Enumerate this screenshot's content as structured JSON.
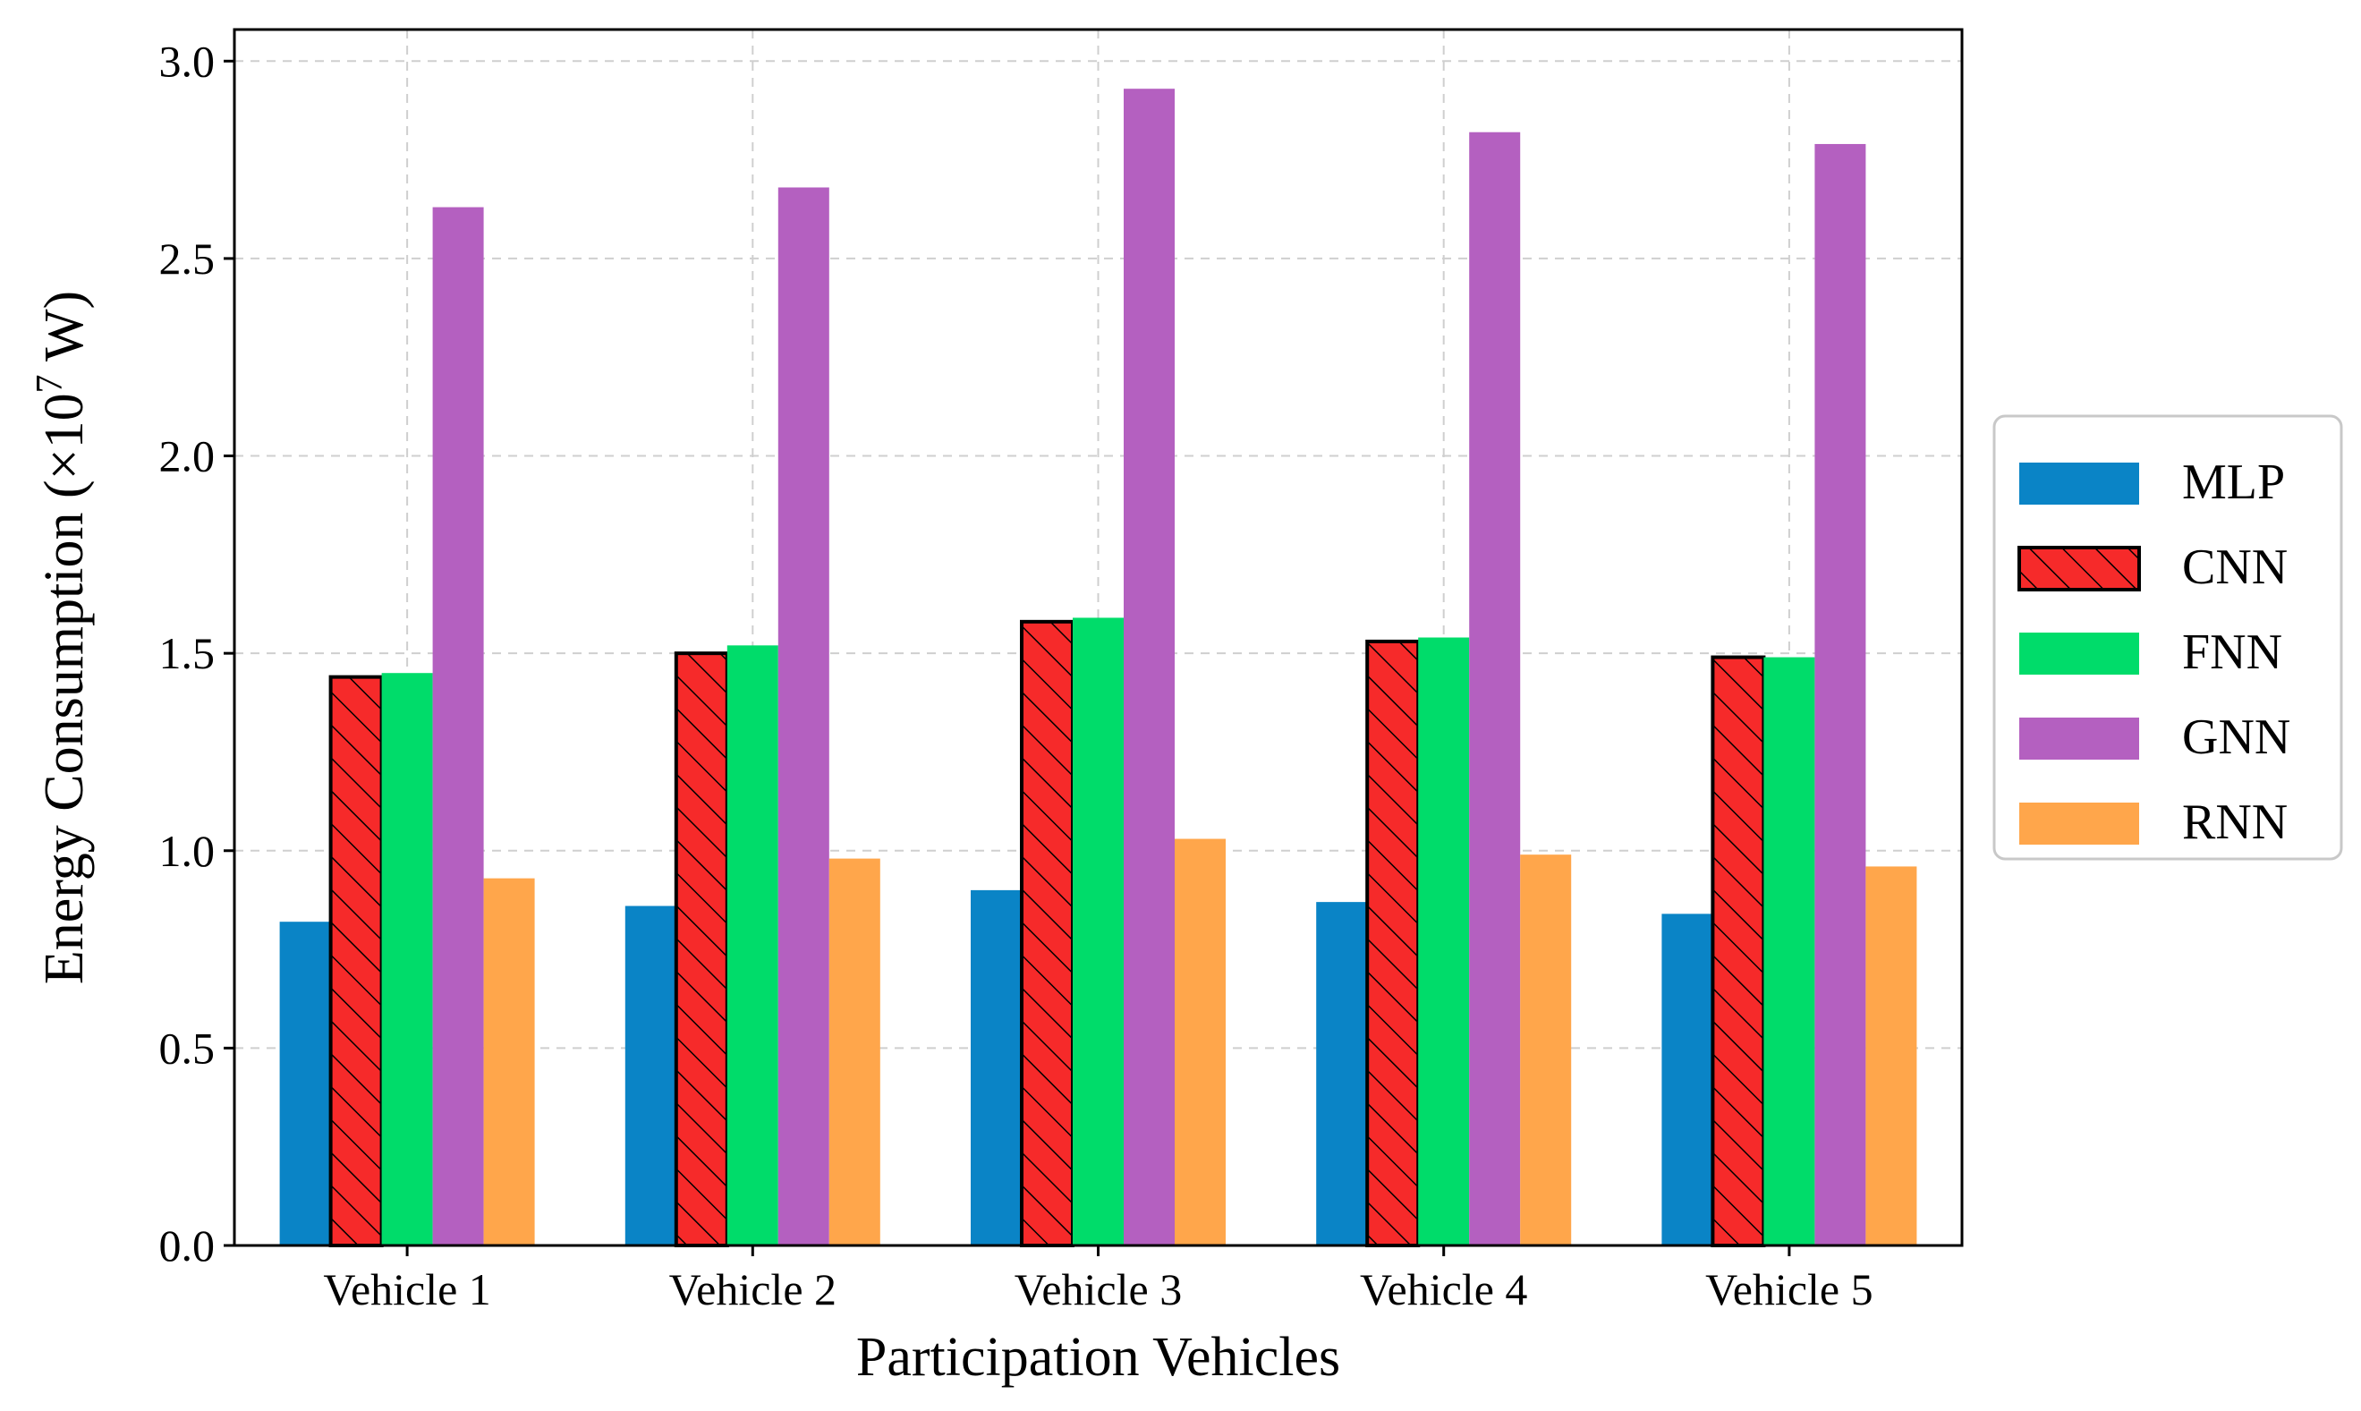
{
  "chart_data": {
    "type": "bar",
    "title": "",
    "xlabel": "Participation Vehicles",
    "ylabel_prefix": "Energy Consumption (×10",
    "ylabel_exponent": "7",
    "ylabel_suffix": " W)",
    "ylim": [
      0,
      3.08
    ],
    "yticks": [
      "0.0",
      "0.5",
      "1.0",
      "1.5",
      "2.0",
      "2.5",
      "3.0"
    ],
    "ytick_values": [
      0,
      0.5,
      1.0,
      1.5,
      2.0,
      2.5,
      3.0
    ],
    "grid": true,
    "legend_position": "right",
    "categories": [
      "Vehicle 1",
      "Vehicle 2",
      "Vehicle 3",
      "Vehicle 4",
      "Vehicle 5"
    ],
    "series": [
      {
        "name": "MLP",
        "color": "#0a84c6",
        "hatch": false,
        "values": [
          0.82,
          0.86,
          0.9,
          0.87,
          0.84
        ]
      },
      {
        "name": "CNN",
        "color": "#f62a2a",
        "hatch": true,
        "values": [
          1.44,
          1.5,
          1.58,
          1.53,
          1.49
        ]
      },
      {
        "name": "FNN",
        "color": "#00dc6a",
        "hatch": false,
        "values": [
          1.45,
          1.52,
          1.59,
          1.54,
          1.49
        ]
      },
      {
        "name": "GNN",
        "color": "#b460c0",
        "hatch": false,
        "values": [
          2.63,
          2.68,
          2.93,
          2.82,
          2.79
        ]
      },
      {
        "name": "RNN",
        "color": "#ffa64b",
        "hatch": false,
        "values": [
          0.93,
          0.98,
          1.03,
          0.99,
          0.96
        ]
      }
    ]
  }
}
